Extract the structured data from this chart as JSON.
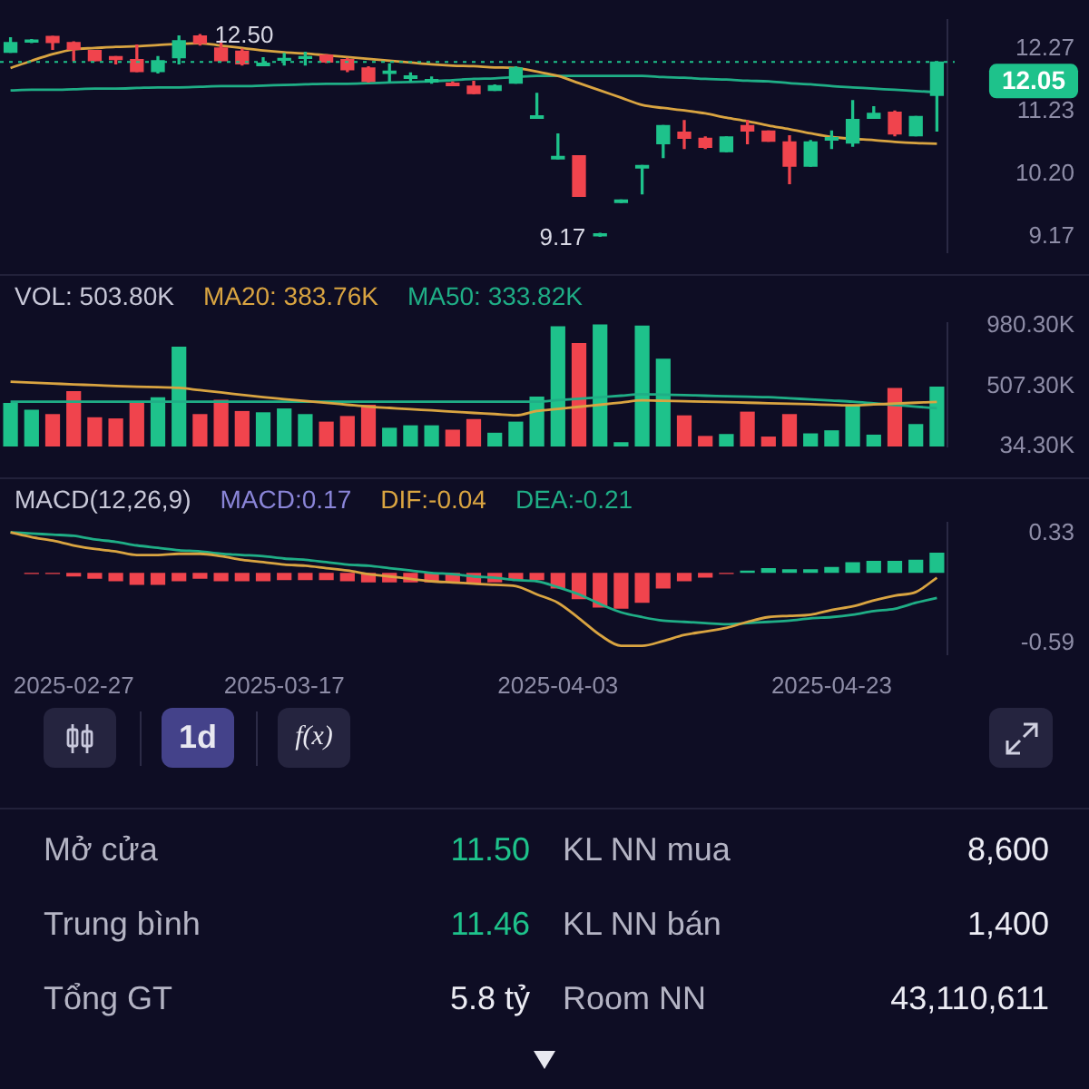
{
  "chart_data": [
    {
      "type": "candlestick",
      "categories": [
        null,
        null,
        null,
        "2025-02-27",
        null,
        null,
        null,
        null,
        null,
        null,
        null,
        null,
        null,
        "2025-03-17",
        null,
        null,
        null,
        null,
        null,
        null,
        null,
        null,
        null,
        null,
        null,
        null,
        "2025-04-03",
        null,
        null,
        null,
        null,
        null,
        null,
        null,
        null,
        null,
        null,
        null,
        null,
        "2025-04-23",
        null,
        null,
        null,
        null,
        null
      ],
      "ohlc": [
        [
          12.21,
          12.45,
          12.21,
          12.37
        ],
        [
          12.38,
          12.42,
          12.37,
          12.41
        ],
        [
          12.47,
          12.47,
          12.26,
          12.37
        ],
        [
          12.37,
          12.38,
          12.07,
          12.26
        ],
        [
          12.24,
          12.24,
          12.07,
          12.07
        ],
        [
          12.14,
          12.14,
          12.02,
          12.09
        ],
        [
          12.09,
          12.33,
          11.89,
          11.89
        ],
        [
          11.89,
          12.14,
          11.87,
          12.07
        ],
        [
          12.12,
          12.48,
          12.02,
          12.4
        ],
        [
          12.48,
          12.5,
          12.33,
          12.36
        ],
        [
          12.28,
          12.4,
          12.07,
          12.07
        ],
        [
          12.23,
          12.26,
          12.0,
          12.02
        ],
        [
          11.99,
          12.12,
          11.99,
          12.03
        ],
        [
          12.08,
          12.19,
          12.0,
          12.11
        ],
        [
          12.11,
          12.21,
          12.0,
          12.14
        ],
        [
          12.16,
          12.17,
          12.04,
          12.05
        ],
        [
          12.09,
          12.11,
          11.89,
          11.92
        ],
        [
          11.95,
          11.97,
          11.72,
          11.73
        ],
        [
          11.86,
          12.02,
          11.73,
          11.9
        ],
        [
          11.78,
          11.87,
          11.73,
          11.82
        ],
        [
          11.72,
          11.8,
          11.7,
          11.76
        ],
        [
          11.7,
          11.72,
          11.66,
          11.66
        ],
        [
          11.65,
          11.73,
          11.53,
          11.53
        ],
        [
          11.58,
          11.67,
          11.58,
          11.66
        ],
        [
          11.7,
          11.97,
          11.7,
          11.95
        ],
        [
          11.12,
          11.53,
          11.12,
          11.16
        ],
        [
          10.45,
          10.86,
          10.45,
          10.49
        ],
        [
          10.5,
          10.5,
          9.83,
          9.83
        ],
        [
          9.18,
          9.22,
          9.17,
          9.21
        ],
        [
          9.73,
          9.77,
          9.73,
          9.77
        ],
        [
          10.3,
          10.34,
          9.87,
          10.34
        ],
        [
          10.7,
          11.0,
          10.47,
          11.0
        ],
        [
          10.89,
          11.08,
          10.62,
          10.79
        ],
        [
          10.79,
          10.81,
          10.62,
          10.64
        ],
        [
          10.57,
          10.81,
          10.57,
          10.81
        ],
        [
          11.0,
          11.08,
          10.7,
          10.91
        ],
        [
          10.91,
          10.91,
          10.74,
          10.74
        ],
        [
          10.73,
          10.83,
          10.04,
          10.33
        ],
        [
          10.33,
          10.75,
          10.33,
          10.73
        ],
        [
          10.76,
          10.91,
          10.62,
          10.8
        ],
        [
          10.71,
          11.41,
          10.66,
          11.1
        ],
        [
          11.12,
          11.31,
          11.12,
          11.2
        ],
        [
          11.22,
          11.24,
          10.83,
          10.86
        ],
        [
          10.83,
          11.15,
          10.83,
          11.15
        ],
        [
          11.5,
          12.05,
          10.91,
          12.05
        ]
      ],
      "colors": [
        "#1ec28b",
        "#1ec28b",
        "#f0444d",
        "#f0444d",
        "#f0444d",
        "#f0444d",
        "#f0444d",
        "#1ec28b",
        "#1ec28b",
        "#f0444d",
        "#f0444d",
        "#f0444d",
        "#1ec28b",
        "#1ec28b",
        "#1ec28b",
        "#f0444d",
        "#f0444d",
        "#f0444d",
        "#1ec28b",
        "#1ec28b",
        "#1ec28b",
        "#f0444d",
        "#f0444d",
        "#1ec28b",
        "#1ec28b",
        "#1ec28b",
        "#1ec28b",
        "#f0444d",
        "#1ec28b",
        "#1ec28b",
        "#1ec28b",
        "#1ec28b",
        "#f0444d",
        "#f0444d",
        "#1ec28b",
        "#f0444d",
        "#f0444d",
        "#f0444d",
        "#1ec28b",
        "#1ec28b",
        "#1ec28b",
        "#1ec28b",
        "#f0444d",
        "#1ec28b",
        "#1ec28b"
      ],
      "series": [
        {
          "type": "line",
          "color": "#d9a441",
          "values": [
            11.95,
            12.07,
            12.18,
            12.26,
            12.28,
            12.3,
            12.31,
            12.33,
            12.35,
            12.36,
            12.32,
            12.28,
            12.24,
            12.21,
            12.19,
            12.16,
            12.13,
            12.1,
            12.07,
            12.04,
            12.01,
            11.99,
            11.98,
            11.96,
            11.95,
            11.89,
            11.82,
            11.7,
            11.58,
            11.46,
            11.34,
            11.29,
            11.25,
            11.2,
            11.13,
            11.07,
            11.0,
            10.94,
            10.87,
            10.81,
            10.78,
            10.76,
            10.73,
            10.71,
            10.7
          ]
        },
        {
          "type": "line",
          "color": "#1fae86",
          "values": [
            11.58,
            11.59,
            11.59,
            11.6,
            11.61,
            11.61,
            11.62,
            11.63,
            11.63,
            11.64,
            11.65,
            11.65,
            11.66,
            11.67,
            11.68,
            11.69,
            11.69,
            11.7,
            11.71,
            11.72,
            11.73,
            11.75,
            11.77,
            11.78,
            11.8,
            11.82,
            11.82,
            11.82,
            11.82,
            11.82,
            11.82,
            11.8,
            11.79,
            11.77,
            11.76,
            11.74,
            11.73,
            11.7,
            11.68,
            11.65,
            11.63,
            11.61,
            11.59,
            11.57,
            11.55
          ]
        }
      ],
      "ylim": [
        8.9,
        12.75
      ],
      "yticks": [
        12.27,
        11.23,
        {
          "value": 10.2,
          "label": "10.20"
        },
        9.17
      ],
      "ref_lines": [
        {
          "axis": "y",
          "value": 12.05,
          "label": "12.05",
          "color": "#1ec28b",
          "line_style": "dotted"
        }
      ],
      "annotations": [
        "12.50",
        "9.17"
      ],
      "tick_labels": "y"
    },
    {
      "type": "bar",
      "categories": [
        null,
        null,
        null,
        "2025-02-27",
        null,
        null,
        null,
        null,
        null,
        null,
        null,
        null,
        null,
        "2025-03-17",
        null,
        null,
        null,
        null,
        null,
        null,
        null,
        null,
        null,
        null,
        null,
        null,
        "2025-04-03",
        null,
        null,
        null,
        null,
        null,
        null,
        null,
        null,
        null,
        null,
        null,
        null,
        "2025-04-23",
        null,
        null,
        null,
        null,
        null
      ],
      "series": [
        {
          "type": "bar",
          "values": [
            376,
            322,
            288,
            468,
            263,
            254,
            385,
            420,
            815,
            288,
            400,
            312,
            302,
            332,
            288,
            229,
            273,
            361,
            181,
            200,
            200,
            166,
            249,
            142,
            229,
            424,
            975,
            844,
            990,
            68,
            980,
            722,
            278,
            117,
            132,
            307,
            112,
            288,
            137,
            161,
            361,
            127,
            493,
            210,
            503.8
          ],
          "colors": [
            "#1ec28b",
            "#1ec28b",
            "#f0444d",
            "#f0444d",
            "#f0444d",
            "#f0444d",
            "#f0444d",
            "#1ec28b",
            "#1ec28b",
            "#f0444d",
            "#f0444d",
            "#f0444d",
            "#1ec28b",
            "#1ec28b",
            "#1ec28b",
            "#f0444d",
            "#f0444d",
            "#f0444d",
            "#1ec28b",
            "#1ec28b",
            "#1ec28b",
            "#f0444d",
            "#f0444d",
            "#1ec28b",
            "#1ec28b",
            "#1ec28b",
            "#1ec28b",
            "#f0444d",
            "#1ec28b",
            "#1ec28b",
            "#1ec28b",
            "#1ec28b",
            "#f0444d",
            "#f0444d",
            "#1ec28b",
            "#f0444d",
            "#f0444d",
            "#f0444d",
            "#1ec28b",
            "#1ec28b",
            "#1ec28b",
            "#1ec28b",
            "#f0444d",
            "#1ec28b",
            "#1ec28b"
          ]
        },
        {
          "type": "line",
          "color": "#d9a441",
          "values": [
            541,
            534,
            527,
            520,
            514,
            507,
            502,
            498,
            493,
            475,
            457,
            438,
            420,
            405,
            390,
            376,
            361,
            346,
            336,
            326,
            317,
            307,
            297,
            288,
            278,
            312,
            328,
            345,
            361,
            378,
            395,
            392,
            388,
            385,
            381,
            377,
            373,
            369,
            365,
            360,
            356,
            363,
            370,
            377,
            383.76
          ]
        },
        {
          "type": "line",
          "color": "#1fae86",
          "values": [
            385,
            385,
            385,
            385,
            385,
            385,
            385,
            385,
            385,
            385,
            385,
            385,
            385,
            385,
            385,
            385,
            385,
            385,
            385,
            385,
            385,
            385,
            385,
            385,
            385,
            385,
            397,
            408,
            420,
            432,
            444,
            440,
            436,
            432,
            428,
            424,
            420,
            411,
            403,
            394,
            385,
            372,
            359,
            346,
            333.82
          ]
        }
      ],
      "ylim": [
        34.3,
        1000
      ],
      "yticks": [
        {
          "value": 980.3,
          "label": "980.30K"
        },
        {
          "value": 507.3,
          "label": "507.30K"
        },
        {
          "value": 34.3,
          "label": "34.30K"
        }
      ],
      "annotations": [
        "VOL: 503.80K",
        "MA20: 383.76K",
        "MA50: 333.82K"
      ],
      "tick_labels": "y"
    },
    {
      "type": "bar",
      "categories": [
        null,
        null,
        null,
        "2025-02-27",
        null,
        null,
        null,
        null,
        null,
        null,
        null,
        null,
        null,
        "2025-03-17",
        null,
        null,
        null,
        null,
        null,
        null,
        null,
        null,
        null,
        null,
        null,
        null,
        "2025-04-03",
        null,
        null,
        null,
        null,
        null,
        null,
        null,
        null,
        null,
        null,
        null,
        null,
        "2025-04-23",
        null,
        null,
        null,
        null,
        null
      ],
      "series": [
        {
          "type": "bar",
          "values": [
            null,
            -0.01,
            -0.01,
            -0.03,
            -0.05,
            -0.07,
            -0.1,
            -0.1,
            -0.07,
            -0.05,
            -0.07,
            -0.07,
            -0.07,
            -0.06,
            -0.06,
            -0.06,
            -0.07,
            -0.08,
            -0.08,
            -0.08,
            -0.08,
            -0.08,
            -0.09,
            -0.08,
            -0.06,
            -0.06,
            -0.13,
            -0.22,
            -0.29,
            -0.3,
            -0.25,
            -0.13,
            -0.07,
            -0.04,
            -0.01,
            0.02,
            0.04,
            0.03,
            0.03,
            0.05,
            0.09,
            0.1,
            0.1,
            0.11,
            0.17
          ],
          "colors": [
            "#f0444d",
            "#f0444d",
            "#f0444d",
            "#f0444d",
            "#f0444d",
            "#f0444d",
            "#f0444d",
            "#f0444d",
            "#f0444d",
            "#f0444d",
            "#f0444d",
            "#f0444d",
            "#f0444d",
            "#f0444d",
            "#f0444d",
            "#f0444d",
            "#f0444d",
            "#f0444d",
            "#f0444d",
            "#f0444d",
            "#f0444d",
            "#f0444d",
            "#f0444d",
            "#f0444d",
            "#f0444d",
            "#f0444d",
            "#f0444d",
            "#f0444d",
            "#f0444d",
            "#f0444d",
            "#f0444d",
            "#f0444d",
            "#f0444d",
            "#f0444d",
            "#f0444d",
            "#1ec28b",
            "#1ec28b",
            "#1ec28b",
            "#1ec28b",
            "#1ec28b",
            "#1ec28b",
            "#1ec28b",
            "#1ec28b",
            "#1ec28b",
            "#1ec28b"
          ]
        },
        {
          "type": "line",
          "color": "#d9a441",
          "values": [
            0.34,
            0.3,
            0.27,
            0.23,
            0.2,
            0.18,
            0.15,
            0.15,
            0.16,
            0.16,
            0.14,
            0.11,
            0.09,
            0.07,
            0.06,
            0.04,
            0.02,
            -0.01,
            -0.03,
            -0.05,
            -0.07,
            -0.08,
            -0.09,
            -0.1,
            -0.11,
            -0.18,
            -0.25,
            -0.38,
            -0.52,
            -0.61,
            -0.61,
            -0.57,
            -0.52,
            -0.49,
            -0.46,
            -0.41,
            -0.37,
            -0.36,
            -0.35,
            -0.31,
            -0.28,
            -0.23,
            -0.19,
            -0.16,
            -0.04
          ]
        },
        {
          "type": "line",
          "color": "#1fae86",
          "values": [
            0.34,
            0.33,
            0.32,
            0.31,
            0.28,
            0.26,
            0.23,
            0.21,
            0.19,
            0.18,
            0.16,
            0.15,
            0.14,
            0.12,
            0.11,
            0.09,
            0.07,
            0.06,
            0.04,
            0.02,
            0.0,
            -0.01,
            -0.03,
            -0.04,
            -0.06,
            -0.07,
            -0.12,
            -0.18,
            -0.26,
            -0.33,
            -0.37,
            -0.4,
            -0.41,
            -0.42,
            -0.43,
            -0.42,
            -0.41,
            -0.4,
            -0.38,
            -0.37,
            -0.35,
            -0.32,
            -0.3,
            -0.25,
            -0.21
          ]
        }
      ],
      "ylim": [
        -0.68,
        0.42
      ],
      "yticks": [
        0.33,
        -0.59
      ],
      "annotations": [
        "MACD(12,26,9)",
        "MACD:0.17",
        "DIF:-0.04",
        "DEA:-0.21"
      ]
    },
    {
      "type": "other",
      "annotations": [
        "1d",
        "f(x)",
        "Mở cửa",
        "11.50",
        "Trung bình",
        "11.46",
        "Tổng GT",
        "5.8 tỷ",
        "KL NN mua",
        "8,600",
        "KL NN bán",
        "1,400",
        "Room NN",
        "43,110,611"
      ],
      "colors": [
        "#e8e8f0",
        "#e8e8f0",
        "#b4b4c4",
        "#1ec28b",
        "#b4b4c4",
        "#1ec28b",
        "#b4b4c4",
        "#ececf4",
        "#b4b4c4",
        "#ececf4",
        "#b4b4c4",
        "#ececf4",
        "#b4b4c4",
        "#ececf4"
      ]
    }
  ]
}
